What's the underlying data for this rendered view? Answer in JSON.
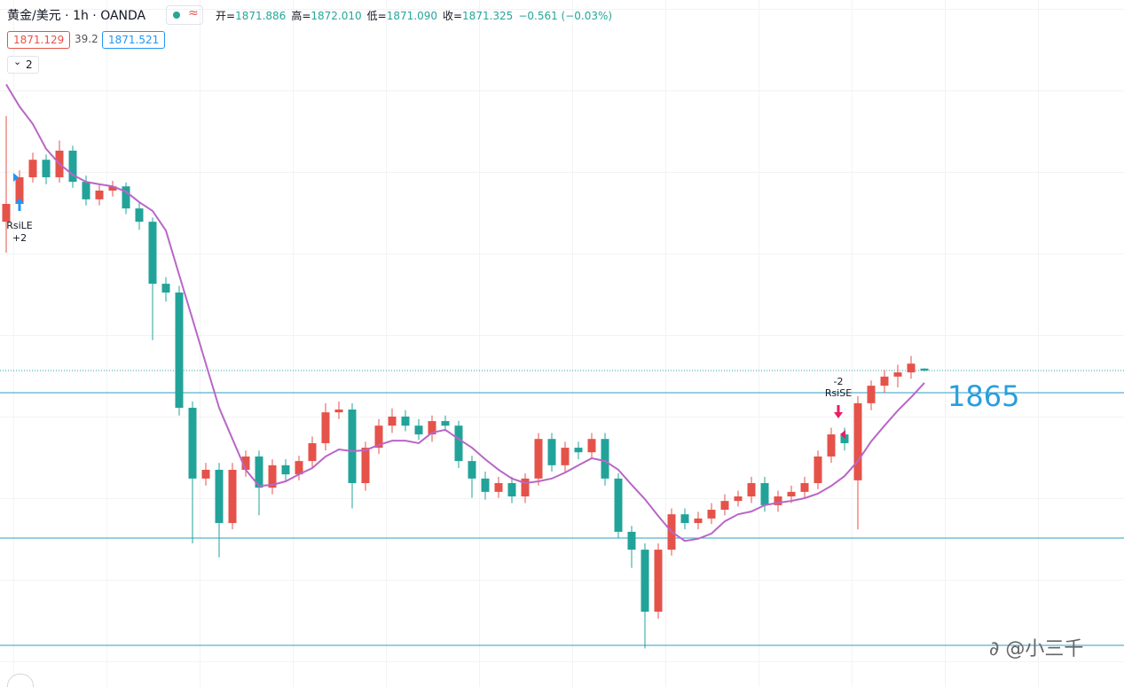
{
  "chart_data": {
    "type": "candlestick",
    "header": {
      "symbol": "黄金/美元 · 1h · OANDA",
      "ohlc": [
        {
          "key": "开=",
          "value": "1871.886"
        },
        {
          "key": "高=",
          "value": "1872.010"
        },
        {
          "key": "低=",
          "value": "1871.090"
        },
        {
          "key": "收=",
          "value": "1871.325"
        }
      ],
      "change": "−0.561 (−0.03%)",
      "bid": "1871.129",
      "spread": "39.2",
      "ask": "1871.521",
      "indicator_count": "2"
    },
    "ylim": [
      1781.0,
      1977.1
    ],
    "up_color": "#e5524a",
    "down_color": "#22a39a",
    "candles": {
      "open": [
        1913.8,
        1918.9,
        1926.5,
        1931.5,
        1926.5,
        1934.1,
        1925.2,
        1920.2,
        1922.7,
        1923.9,
        1917.6,
        1913.8,
        1896.1,
        1893.6,
        1860.7,
        1840.5,
        1843.0,
        1827.8,
        1843.0,
        1846.8,
        1837.9,
        1844.3,
        1841.7,
        1845.5,
        1850.6,
        1859.4,
        1860.2,
        1839.2,
        1849.3,
        1855.6,
        1858.2,
        1855.6,
        1853.1,
        1856.9,
        1855.6,
        1845.5,
        1840.5,
        1836.7,
        1839.2,
        1835.4,
        1840.5,
        1851.8,
        1844.3,
        1849.3,
        1848.0,
        1851.8,
        1840.5,
        1825.3,
        1820.2,
        1802.5,
        1820.2,
        1830.3,
        1827.8,
        1829.1,
        1831.6,
        1834.1,
        1835.4,
        1839.2,
        1832.9,
        1835.4,
        1836.7,
        1839.2,
        1846.8,
        1853.1,
        1840.0,
        1862.0,
        1867.0,
        1869.6,
        1870.8,
        1871.886
      ],
      "high": [
        1944.0,
        1928.5,
        1933.5,
        1933.0,
        1937.0,
        1935.5,
        1927.0,
        1924.5,
        1925.5,
        1925.0,
        1919.5,
        1915.0,
        1898.0,
        1895.5,
        1862.5,
        1845.0,
        1845.0,
        1845.0,
        1848.5,
        1848.5,
        1846.0,
        1846.0,
        1847.0,
        1852.5,
        1862.0,
        1862.5,
        1862.0,
        1851.0,
        1857.5,
        1860.5,
        1860.0,
        1857.5,
        1858.5,
        1858.5,
        1857.0,
        1847.0,
        1842.5,
        1841.0,
        1841.0,
        1842.0,
        1853.5,
        1853.5,
        1851.0,
        1851.0,
        1853.5,
        1853.5,
        1842.0,
        1827.0,
        1822.0,
        1822.0,
        1832.0,
        1832.0,
        1831.0,
        1833.5,
        1836.0,
        1837.0,
        1841.0,
        1841.0,
        1837.0,
        1838.5,
        1841.0,
        1848.5,
        1855.0,
        1855.0,
        1864.0,
        1868.5,
        1871.5,
        1873.0,
        1875.5,
        1872.01
      ],
      "low": [
        1905.0,
        1917.0,
        1925.0,
        1924.5,
        1925.0,
        1923.5,
        1918.5,
        1918.5,
        1921.0,
        1916.0,
        1911.5,
        1880.0,
        1891.0,
        1858.5,
        1822.0,
        1838.5,
        1818.0,
        1826.0,
        1841.0,
        1830.0,
        1836.0,
        1840.0,
        1840.0,
        1843.5,
        1848.5,
        1857.5,
        1832.0,
        1837.0,
        1847.5,
        1853.5,
        1854.0,
        1851.5,
        1851.0,
        1854.0,
        1843.5,
        1835.0,
        1834.5,
        1835.0,
        1833.5,
        1833.5,
        1838.5,
        1842.5,
        1842.5,
        1846.0,
        1846.0,
        1838.5,
        1823.5,
        1815.0,
        1792.0,
        1800.5,
        1818.5,
        1826.0,
        1826.0,
        1827.5,
        1830.0,
        1832.5,
        1833.5,
        1831.0,
        1831.0,
        1833.5,
        1835.0,
        1837.5,
        1845.0,
        1848.5,
        1826.0,
        1860.0,
        1865.0,
        1866.5,
        1869.0,
        1871.09
      ],
      "close": [
        1918.9,
        1926.5,
        1931.5,
        1926.5,
        1934.1,
        1925.2,
        1920.2,
        1922.7,
        1923.9,
        1917.6,
        1913.8,
        1896.1,
        1893.6,
        1860.7,
        1840.5,
        1843.0,
        1827.8,
        1843.0,
        1846.8,
        1837.9,
        1844.3,
        1841.7,
        1845.5,
        1850.6,
        1859.4,
        1860.2,
        1839.2,
        1849.3,
        1855.6,
        1858.2,
        1855.6,
        1853.1,
        1856.9,
        1855.6,
        1845.5,
        1840.5,
        1836.7,
        1839.2,
        1835.4,
        1840.5,
        1851.8,
        1844.3,
        1849.3,
        1848.0,
        1851.8,
        1840.5,
        1825.3,
        1820.2,
        1802.5,
        1820.2,
        1830.3,
        1827.8,
        1829.1,
        1831.6,
        1834.1,
        1835.4,
        1839.2,
        1832.9,
        1835.4,
        1836.7,
        1839.2,
        1846.8,
        1853.1,
        1850.6,
        1862.0,
        1867.0,
        1869.6,
        1870.8,
        1873.3,
        1871.325
      ]
    },
    "ma": {
      "color": "#b966c6",
      "values": [
        1953.0,
        1946.7,
        1941.7,
        1934.6,
        1930.3,
        1927.2,
        1925.2,
        1924.5,
        1923.9,
        1922.4,
        1919.4,
        1916.9,
        1911.3,
        1898.6,
        1886.0,
        1873.3,
        1860.7,
        1851.8,
        1843.0,
        1838.4,
        1838.7,
        1839.7,
        1841.7,
        1843.5,
        1846.8,
        1848.8,
        1848.3,
        1848.6,
        1850.1,
        1851.3,
        1851.3,
        1850.6,
        1853.6,
        1854.4,
        1851.8,
        1849.3,
        1846.0,
        1843.0,
        1840.5,
        1839.2,
        1839.7,
        1840.5,
        1842.2,
        1844.3,
        1846.3,
        1845.5,
        1843.0,
        1838.7,
        1834.6,
        1829.8,
        1825.3,
        1822.7,
        1823.3,
        1824.8,
        1828.3,
        1830.3,
        1831.1,
        1832.9,
        1833.6,
        1834.1,
        1834.9,
        1836.2,
        1838.4,
        1841.2,
        1845.5,
        1851.1,
        1855.6,
        1859.9,
        1863.7,
        1867.8
      ]
    },
    "labeled_level": 1865,
    "levels": [
      1823.5,
      1792.9
    ],
    "level_color": "#2f9cc0",
    "signals": [
      {
        "name": "RsiLE",
        "qty": "+2"
      },
      {
        "name": "RsiSE",
        "qty": "-2"
      }
    ],
    "watermark": "@小三千"
  }
}
